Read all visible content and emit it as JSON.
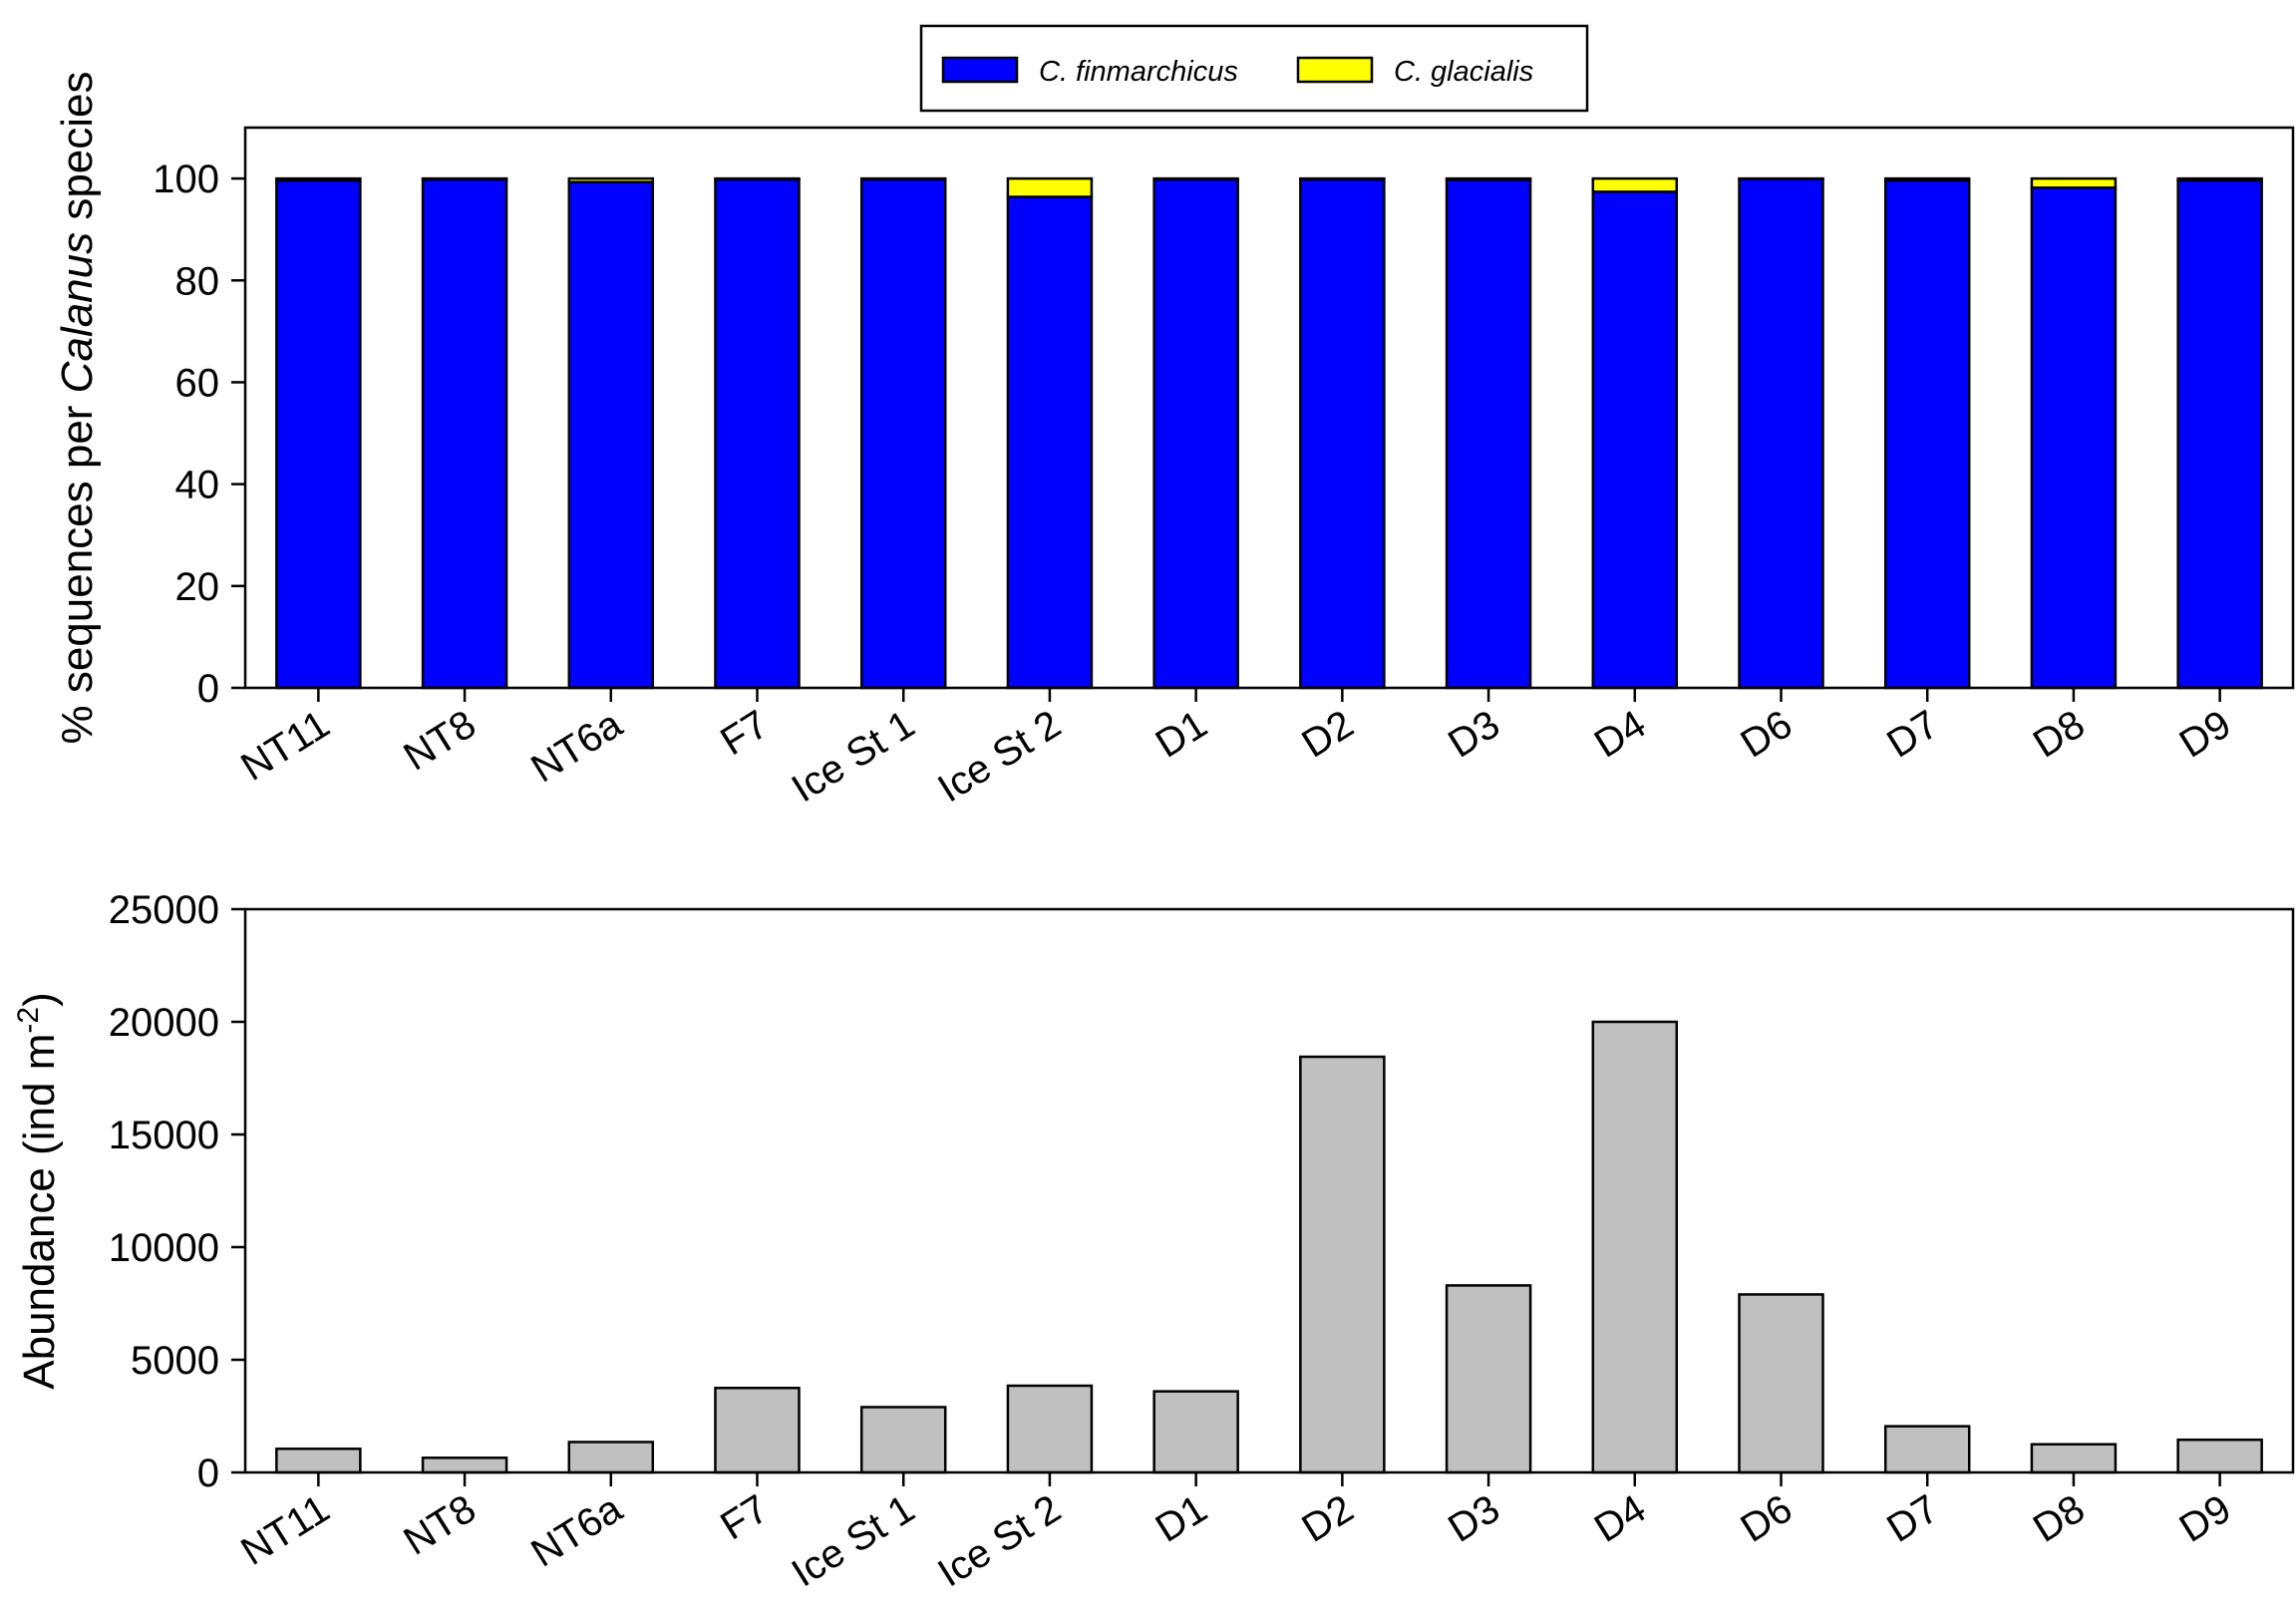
{
  "chart_data": [
    {
      "type": "bar",
      "stacked": true,
      "categories": [
        "NT11",
        "NT8",
        "NT6a",
        "F7",
        "Ice St 1",
        "Ice St 2",
        "D1",
        "D2",
        "D3",
        "D4",
        "D6",
        "D7",
        "D8",
        "D9"
      ],
      "series": [
        {
          "name": "C. finmarchicus",
          "color": "#0000ff",
          "values": [
            99.6,
            99.8,
            99.3,
            99.8,
            99.8,
            96.4,
            99.8,
            99.8,
            99.7,
            97.4,
            99.9,
            99.6,
            98.2,
            99.6
          ]
        },
        {
          "name": "C. glacialis",
          "color": "#ffff00",
          "values": [
            0.4,
            0.2,
            0.7,
            0.2,
            0.2,
            3.6,
            0.2,
            0.2,
            0.3,
            2.6,
            0.1,
            0.4,
            1.8,
            0.4
          ]
        }
      ],
      "ylabel_parts": [
        {
          "text": "% sequences per ",
          "italic": false
        },
        {
          "text": "Calanus",
          "italic": true
        },
        {
          "text": " species",
          "italic": false
        }
      ],
      "ylim": [
        0,
        110
      ],
      "yticks": [
        0,
        20,
        40,
        60,
        80,
        100
      ],
      "legend_position": "top-center",
      "grid": false
    },
    {
      "type": "bar",
      "categories": [
        "NT11",
        "NT8",
        "NT6a",
        "F7",
        "Ice St 1",
        "Ice St 2",
        "D1",
        "D2",
        "D3",
        "D4",
        "D6",
        "D7",
        "D8",
        "D9"
      ],
      "series": [
        {
          "color": "#c0c0c0",
          "values": [
            1050,
            650,
            1350,
            3750,
            2900,
            3850,
            3600,
            18450,
            8300,
            20000,
            7900,
            2050,
            1250,
            1450
          ]
        }
      ],
      "ylabel_parts": [
        {
          "text": "Abundance (ind m",
          "italic": false
        },
        {
          "text": "-2",
          "superscript": true
        },
        {
          "text": ")",
          "italic": false
        }
      ],
      "ylim": [
        0,
        25000
      ],
      "yticks": [
        0,
        5000,
        10000,
        15000,
        20000,
        25000
      ],
      "grid": false
    }
  ]
}
